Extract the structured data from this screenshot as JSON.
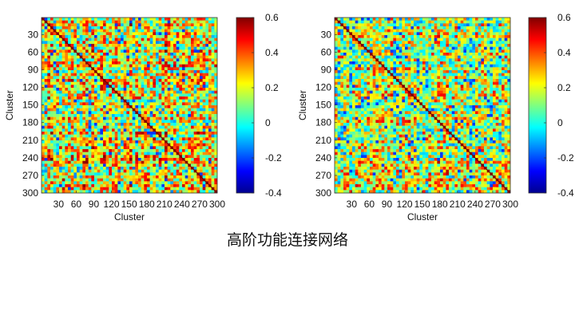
{
  "caption": "高阶功能连接网络",
  "chart_data": [
    {
      "type": "heatmap",
      "title": "",
      "xlabel": "Cluster",
      "ylabel": "Cluster",
      "x_ticks": [
        30,
        60,
        90,
        120,
        150,
        180,
        210,
        240,
        270,
        300
      ],
      "y_ticks": [
        30,
        60,
        90,
        120,
        150,
        180,
        210,
        240,
        270,
        300
      ],
      "xlim": [
        1,
        300
      ],
      "ylim": [
        1,
        300
      ],
      "diagonal": "high",
      "value_range": [
        -0.4,
        0.6
      ],
      "colorbar": {
        "ticks": [
          0.6,
          0.4,
          0.2,
          0,
          -0.2,
          -0.4
        ],
        "colormap": "jet",
        "placement": "right"
      },
      "texture": "warm-blocky"
    },
    {
      "type": "heatmap",
      "title": "",
      "xlabel": "Cluster",
      "ylabel": "Cluster",
      "x_ticks": [
        30,
        60,
        90,
        120,
        150,
        180,
        210,
        240,
        270,
        300
      ],
      "y_ticks": [
        30,
        60,
        90,
        120,
        150,
        180,
        210,
        240,
        270,
        300
      ],
      "xlim": [
        1,
        300
      ],
      "ylim": [
        1,
        300
      ],
      "diagonal": "high",
      "value_range": [
        -0.4,
        0.6
      ],
      "colorbar": {
        "ticks": [
          0.6,
          0.4,
          0.2,
          0,
          -0.2,
          -0.4
        ],
        "colormap": "jet",
        "placement": "right"
      },
      "texture": "cool-mixed"
    }
  ]
}
